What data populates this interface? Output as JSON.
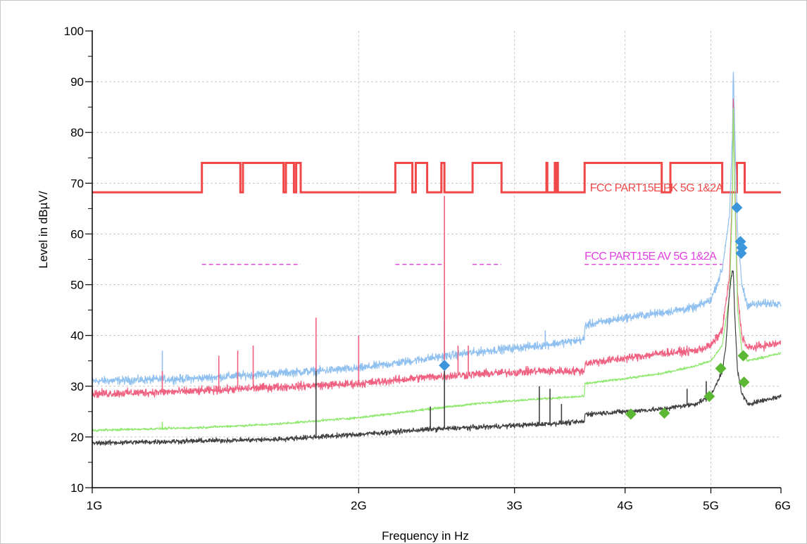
{
  "chart_data": {
    "type": "line",
    "title": "",
    "xlabel": "Frequency in Hz",
    "ylabel": "Level in dBµV/",
    "x_scale": "log",
    "xlim": [
      1000000000,
      6000000000
    ],
    "ylim": [
      10,
      100
    ],
    "grid": true,
    "y_ticks": [
      {
        "value": 10,
        "label": "10"
      },
      {
        "value": 20,
        "label": "20"
      },
      {
        "value": 30,
        "label": "30"
      },
      {
        "value": 40,
        "label": "40"
      },
      {
        "value": 50,
        "label": "50"
      },
      {
        "value": 60,
        "label": "60"
      },
      {
        "value": 70,
        "label": "70"
      },
      {
        "value": 80,
        "label": "80"
      },
      {
        "value": 90,
        "label": "90"
      },
      {
        "value": 100,
        "label": "100"
      }
    ],
    "x_ticks": [
      {
        "value": 1000000000,
        "label": "1G"
      },
      {
        "value": 2000000000,
        "label": "2G"
      },
      {
        "value": 3000000000,
        "label": "3G"
      },
      {
        "value": 4000000000,
        "label": "4G"
      },
      {
        "value": 5000000000,
        "label": "5G"
      },
      {
        "value": 6000000000,
        "label": "6G"
      }
    ],
    "limit_lines": [
      {
        "label": "FCC PART15E PK 5G 1&2A",
        "color": "#f04848",
        "label_x": 3650000000,
        "label_y": 68.4,
        "steps": [
          [
            1000000000,
            68.2
          ],
          [
            1330000000,
            68.2
          ],
          [
            1330000000,
            74
          ],
          [
            1470000000,
            74
          ],
          [
            1470000000,
            68.2
          ],
          [
            1480000000,
            68.2
          ],
          [
            1480000000,
            74
          ],
          [
            1645000000,
            74
          ],
          [
            1645000000,
            68.2
          ],
          [
            1655000000,
            68.2
          ],
          [
            1655000000,
            74
          ],
          [
            1690000000,
            74
          ],
          [
            1690000000,
            68.2
          ],
          [
            1700000000,
            68.2
          ],
          [
            1700000000,
            74
          ],
          [
            1720000000,
            74
          ],
          [
            1720000000,
            68.2
          ],
          [
            2200000000,
            68.2
          ],
          [
            2200000000,
            74
          ],
          [
            2300000000,
            74
          ],
          [
            2300000000,
            68.2
          ],
          [
            2320000000,
            68.2
          ],
          [
            2320000000,
            74
          ],
          [
            2390000000,
            74
          ],
          [
            2390000000,
            68.2
          ],
          [
            2480000000,
            68.2
          ],
          [
            2480000000,
            74
          ],
          [
            2500000000,
            74
          ],
          [
            2500000000,
            68.2
          ],
          [
            2690000000,
            68.2
          ],
          [
            2690000000,
            74
          ],
          [
            2900000000,
            74
          ],
          [
            2900000000,
            68.2
          ],
          [
            3260000000,
            68.2
          ],
          [
            3260000000,
            74
          ],
          [
            3267000000,
            74
          ],
          [
            3267000000,
            68.2
          ],
          [
            3332000000,
            68.2
          ],
          [
            3332000000,
            74
          ],
          [
            3339000000,
            74
          ],
          [
            3339000000,
            68.2
          ],
          [
            3345000000,
            68.2
          ],
          [
            3345000000,
            74
          ],
          [
            3358000000,
            74
          ],
          [
            3358000000,
            68.2
          ],
          [
            3600000000,
            68.2
          ],
          [
            3600000000,
            74
          ],
          [
            4400000000,
            74
          ],
          [
            4400000000,
            68.2
          ],
          [
            4500000000,
            68.2
          ],
          [
            4500000000,
            74
          ],
          [
            5150000000,
            74
          ],
          [
            5150000000,
            68.2
          ],
          [
            5350000000,
            68.2
          ],
          [
            5350000000,
            74
          ],
          [
            5460000000,
            74
          ],
          [
            5460000000,
            68.2
          ],
          [
            6000000000,
            68.2
          ]
        ]
      },
      {
        "label": "FCC PART15E AV 5G 1&2A",
        "color": "#e040e0",
        "label_x": 3600000000,
        "label_y": 54.9,
        "segments": [
          [
            1330000000,
            1720000000,
            54
          ],
          [
            2200000000,
            2500000000,
            54
          ],
          [
            2690000000,
            2900000000,
            54
          ],
          [
            3600000000,
            4400000000,
            54
          ],
          [
            4500000000,
            5150000000,
            54
          ]
        ]
      }
    ],
    "series": [
      {
        "color": "#90c0f0",
        "noise": 1.2,
        "points": [
          [
            1000000000,
            31
          ],
          [
            1300000000,
            31.5
          ],
          [
            1600000000,
            32.5
          ],
          [
            2000000000,
            33.5
          ],
          [
            2400000000,
            35.5
          ],
          [
            2800000000,
            37
          ],
          [
            3200000000,
            38
          ],
          [
            3600000000,
            39.2
          ],
          [
            3601000000,
            42
          ],
          [
            4000000000,
            43.5
          ],
          [
            4400000000,
            44.5
          ],
          [
            4800000000,
            45.5
          ],
          [
            5000000000,
            47
          ],
          [
            5150000000,
            53
          ],
          [
            5250000000,
            64
          ],
          [
            5290000000,
            80
          ],
          [
            5300000000,
            93
          ],
          [
            5320000000,
            80
          ],
          [
            5360000000,
            60
          ],
          [
            5420000000,
            50
          ],
          [
            5500000000,
            46
          ],
          [
            6000000000,
            46.5
          ]
        ],
        "spikes": [
          [
            1200000000,
            37
          ],
          [
            1790000000,
            38
          ],
          [
            2500000000,
            43
          ],
          [
            3250000000,
            41
          ]
        ]
      },
      {
        "color": "#f06080",
        "noise": 1.2,
        "points": [
          [
            1000000000,
            28.5
          ],
          [
            1300000000,
            29
          ],
          [
            1600000000,
            29.8
          ],
          [
            2000000000,
            30.5
          ],
          [
            2400000000,
            31.8
          ],
          [
            2800000000,
            32.5
          ],
          [
            3200000000,
            33
          ],
          [
            3600000000,
            33
          ],
          [
            3601000000,
            34.5
          ],
          [
            4000000000,
            35.5
          ],
          [
            4400000000,
            36.5
          ],
          [
            4800000000,
            37
          ],
          [
            5000000000,
            38
          ],
          [
            5150000000,
            41
          ],
          [
            5250000000,
            52
          ],
          [
            5290000000,
            70
          ],
          [
            5300000000,
            88
          ],
          [
            5320000000,
            70
          ],
          [
            5360000000,
            48
          ],
          [
            5420000000,
            40
          ],
          [
            5500000000,
            37.5
          ],
          [
            6000000000,
            38.5
          ]
        ],
        "spikes": [
          [
            1200000000,
            33
          ],
          [
            1390000000,
            36
          ],
          [
            1460000000,
            37
          ],
          [
            1520000000,
            38
          ],
          [
            1790000000,
            43.5
          ],
          [
            2000000000,
            40
          ],
          [
            2500000000,
            67.5
          ],
          [
            2590000000,
            38
          ],
          [
            2660000000,
            38
          ]
        ]
      },
      {
        "color": "#90e870",
        "noise": 0.35,
        "points": [
          [
            1000000000,
            21.3
          ],
          [
            1300000000,
            21.8
          ],
          [
            1600000000,
            22.5
          ],
          [
            2000000000,
            23.8
          ],
          [
            2400000000,
            25.5
          ],
          [
            2800000000,
            26.8
          ],
          [
            3200000000,
            27.5
          ],
          [
            3600000000,
            28
          ],
          [
            3601000000,
            30.5
          ],
          [
            4000000000,
            31.5
          ],
          [
            4400000000,
            32.5
          ],
          [
            4800000000,
            34
          ],
          [
            5000000000,
            35
          ],
          [
            5150000000,
            38
          ],
          [
            5250000000,
            48
          ],
          [
            5290000000,
            68
          ],
          [
            5300000000,
            86
          ],
          [
            5320000000,
            68
          ],
          [
            5360000000,
            45
          ],
          [
            5420000000,
            37
          ],
          [
            5500000000,
            35
          ],
          [
            6000000000,
            36.5
          ]
        ],
        "spikes": [
          [
            1200000000,
            23
          ],
          [
            2500000000,
            27
          ]
        ]
      },
      {
        "color": "#404040",
        "noise": 0.7,
        "points": [
          [
            1000000000,
            18.8
          ],
          [
            1300000000,
            19.2
          ],
          [
            1600000000,
            19.5
          ],
          [
            2000000000,
            20.5
          ],
          [
            2400000000,
            21.5
          ],
          [
            2800000000,
            22
          ],
          [
            3200000000,
            22.5
          ],
          [
            3600000000,
            23
          ],
          [
            3601000000,
            24.5
          ],
          [
            4000000000,
            25
          ],
          [
            4400000000,
            25.5
          ],
          [
            4800000000,
            26.5
          ],
          [
            5000000000,
            28
          ],
          [
            5150000000,
            33
          ],
          [
            5200000000,
            38
          ],
          [
            5250000000,
            49
          ],
          [
            5280000000,
            52
          ],
          [
            5300000000,
            53
          ],
          [
            5320000000,
            44
          ],
          [
            5360000000,
            33
          ],
          [
            5420000000,
            28.5
          ],
          [
            5500000000,
            26.5
          ],
          [
            6000000000,
            28
          ]
        ],
        "spikes": [
          [
            1790000000,
            33
          ],
          [
            2410000000,
            26
          ],
          [
            2500000000,
            33
          ],
          [
            3200000000,
            30
          ],
          [
            3290000000,
            29.5
          ],
          [
            3390000000,
            26.5
          ],
          [
            4700000000,
            29.5
          ],
          [
            4940000000,
            31
          ]
        ]
      }
    ],
    "markers": [
      {
        "color": "#3c96dc",
        "points": [
          [
            2500000000,
            34.1
          ],
          [
            5350000000,
            65.2
          ],
          [
            5400000000,
            58.5
          ],
          [
            5420000000,
            57.3
          ],
          [
            5410000000,
            56.2
          ]
        ]
      },
      {
        "color": "#5cb834",
        "points": [
          [
            4060000000,
            24.5
          ],
          [
            4430000000,
            24.7
          ],
          [
            4980000000,
            28
          ],
          [
            5130000000,
            33.5
          ],
          [
            5440000000,
            36
          ],
          [
            5450000000,
            30.8
          ]
        ]
      }
    ]
  }
}
